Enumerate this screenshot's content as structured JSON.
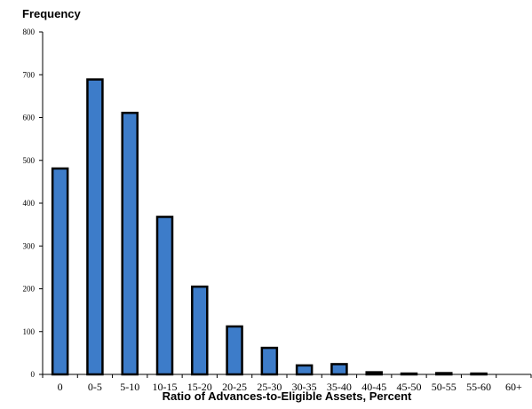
{
  "chart_data": {
    "type": "bar",
    "ylabel": "Frequency",
    "xlabel": "Ratio of Advances-to-Eligible Assets, Percent",
    "categories": [
      "0",
      "0-5",
      "5-10",
      "10-15",
      "15-20",
      "20-25",
      "25-30",
      "30-35",
      "35-40",
      "40-45",
      "45-50",
      "50-55",
      "55-60",
      "60+"
    ],
    "values": [
      481,
      689,
      611,
      368,
      205,
      112,
      62,
      21,
      24,
      5,
      2,
      3,
      2,
      0
    ],
    "ylim": [
      0,
      800
    ],
    "yticks": [
      0,
      100,
      200,
      300,
      400,
      500,
      600,
      700,
      800
    ],
    "grid": false,
    "colors": {
      "bar_fill": "#3d7cc9",
      "bar_stroke": "#000000",
      "axis": "#000000"
    }
  }
}
